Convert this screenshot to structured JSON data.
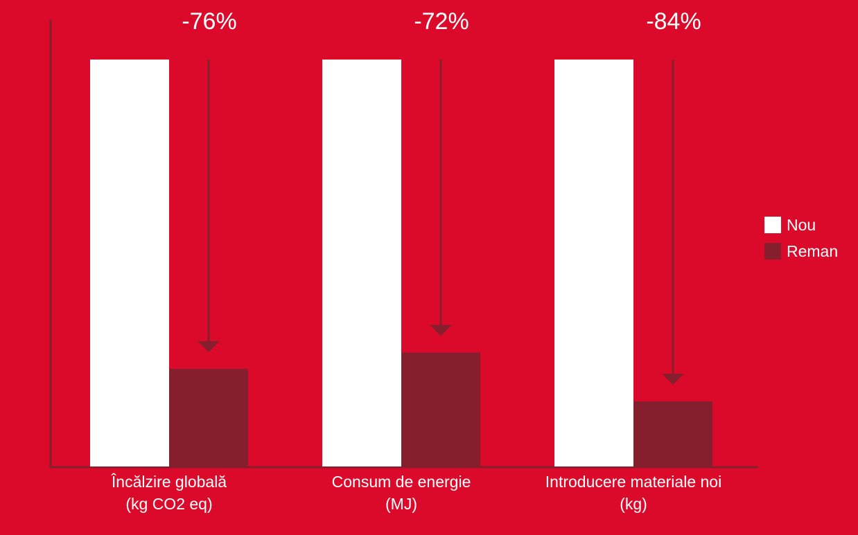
{
  "chart_data": {
    "type": "bar",
    "categories": [
      {
        "name": "Încălzire globală",
        "unit": "(kg CO2 eq)"
      },
      {
        "name": "Consum de energie",
        "unit": "(MJ)"
      },
      {
        "name": "Introducere materiale noi",
        "unit": "(kg)"
      }
    ],
    "series": [
      {
        "name": "Nou",
        "values": [
          100,
          100,
          100
        ],
        "color": "#ffffff"
      },
      {
        "name": "Reman",
        "values": [
          24,
          28,
          16
        ],
        "color": "#861f2d"
      }
    ],
    "reduction_labels": [
      "-76%",
      "-72%",
      "-84%"
    ],
    "ylim": [
      0,
      100
    ],
    "axis_color": "#861f2d",
    "background": "#db0a2a",
    "legend_position": "right"
  }
}
